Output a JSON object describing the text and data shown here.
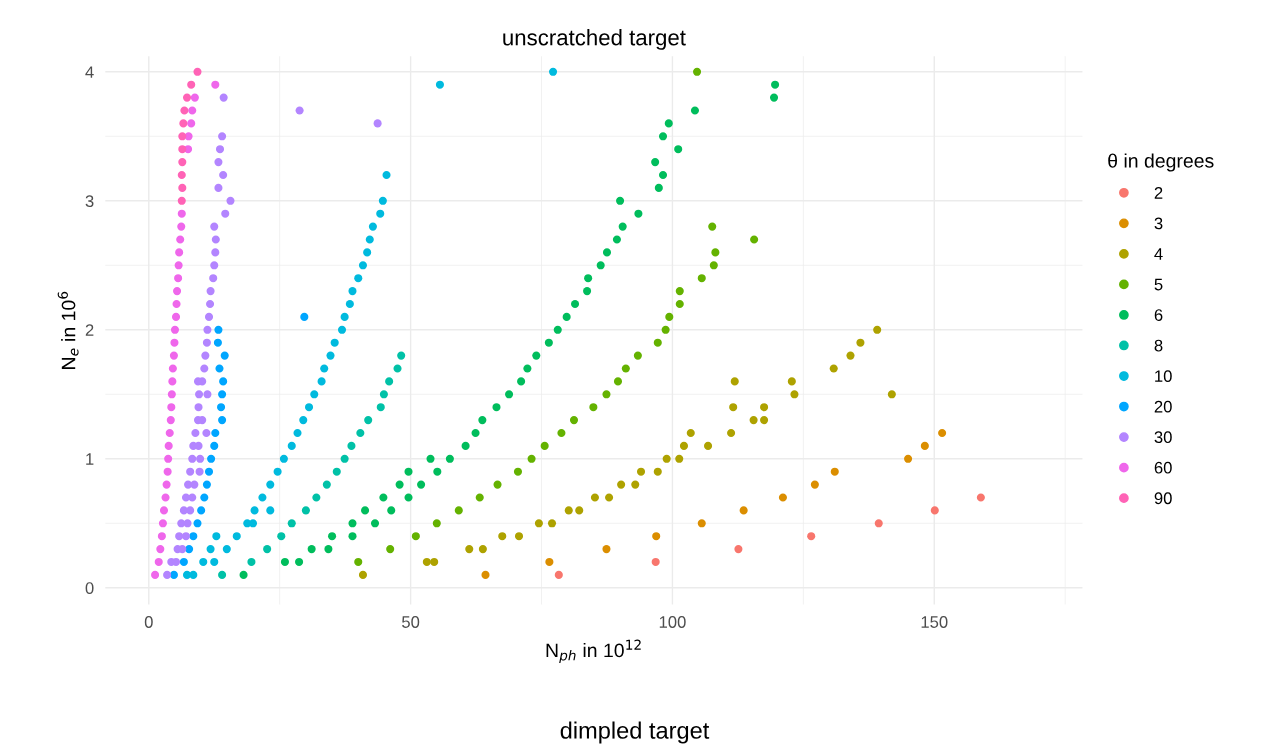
{
  "chart_data": {
    "type": "scatter",
    "title": "unscratched target",
    "xlabel": "N$_{ph}$ in 10$^{12}$",
    "ylabel": "N$_{e}$ in 10$^{6}$",
    "legend_title": "θ in degrees",
    "annotations": [
      "dimpled target"
    ],
    "xlim": [
      -8.3,
      178.3
    ],
    "ylim": [
      -0.13,
      4.12
    ],
    "xticks": [
      0,
      {
        "value": 25,
        "label": null
      },
      50,
      {
        "value": 75,
        "label": null
      },
      100,
      {
        "value": 125,
        "label": null
      },
      150,
      {
        "value": 175,
        "label": null
      }
    ],
    "yticks": [
      0,
      {
        "value": 0.5,
        "label": null
      },
      1,
      {
        "value": 1.5,
        "label": null
      },
      2,
      {
        "value": 2.5,
        "label": null
      },
      3,
      {
        "value": 3.5,
        "label": null
      },
      4
    ],
    "grid": true,
    "legend": "right",
    "marker": "circle",
    "series": [
      {
        "name": "2",
        "color": "#F8766D",
        "x": [
          78.3,
          96.8,
          112.6,
          126.5,
          139.4,
          150.1,
          158.9
        ],
        "values": [
          0.1,
          0.2,
          0.3,
          0.4,
          0.5,
          0.6,
          0.7
        ]
      },
      {
        "name": "3",
        "color": "#DB8E00",
        "x": [
          64.3,
          76.5,
          87.4,
          96.9,
          105.6,
          113.6,
          121.1,
          127.2,
          131.0,
          145.0,
          148.2,
          151.5
        ],
        "values": [
          0.1,
          0.2,
          0.3,
          0.4,
          0.5,
          0.6,
          0.7,
          0.8,
          0.9,
          1.0,
          1.1,
          1.2
        ]
      },
      {
        "name": "4",
        "color": "#AEA200",
        "x": [
          40.9,
          53.1,
          54.5,
          61.2,
          63.8,
          67.5,
          70.7,
          74.5,
          77.0,
          80.2,
          82.2,
          85.2,
          87.9,
          90.2,
          92.9,
          94.0,
          97.2,
          98.9,
          101.3,
          102.2,
          106.8,
          103.5,
          111.2,
          111.6,
          111.9,
          115.5,
          117.5,
          117.5,
          122.8,
          123.3,
          130.8,
          134.0,
          135.9,
          139.1,
          141.9
        ],
        "values": [
          0.1,
          0.2,
          0.2,
          0.3,
          0.3,
          0.4,
          0.4,
          0.5,
          0.5,
          0.6,
          0.6,
          0.7,
          0.7,
          0.8,
          0.8,
          0.9,
          0.9,
          1.0,
          1.0,
          1.1,
          1.1,
          1.2,
          1.2,
          1.4,
          1.6,
          1.3,
          1.3,
          1.4,
          1.6,
          1.5,
          1.7,
          1.8,
          1.9,
          2.0,
          1.5
        ]
      },
      {
        "name": "5",
        "color": "#64B200",
        "x": [
          40.0,
          46.1,
          51.0,
          55.0,
          59.2,
          63.2,
          66.6,
          70.5,
          73.1,
          75.6,
          78.8,
          81.2,
          84.9,
          87.4,
          89.6,
          91.1,
          93.4,
          97.2,
          98.7,
          99.4,
          101.4,
          101.4,
          105.6,
          107.9,
          108.2,
          115.6,
          107.6,
          104.7
        ],
        "values": [
          0.2,
          0.3,
          0.4,
          0.5,
          0.6,
          0.7,
          0.8,
          0.9,
          1.0,
          1.1,
          1.2,
          1.3,
          1.4,
          1.5,
          1.6,
          1.7,
          1.8,
          1.9,
          2.0,
          2.1,
          2.2,
          2.3,
          2.4,
          2.5,
          2.6,
          2.7,
          2.8,
          4.0
        ]
      },
      {
        "name": "6",
        "color": "#00BD5C",
        "x": [
          18.1,
          26.0,
          28.7,
          31.1,
          34.3,
          35.0,
          38.9,
          38.9,
          43.2,
          41.3,
          46.3,
          44.8,
          49.6,
          47.9,
          52.0,
          49.6,
          55.1,
          53.8,
          57.5,
          60.5,
          62.4,
          63.7,
          66.4,
          68.8,
          71.1,
          72.3,
          74.0,
          76.4,
          78.1,
          79.8,
          81.4,
          83.7,
          83.9,
          86.3,
          87.5,
          89.4,
          90.5,
          93.5,
          90.0,
          97.4,
          98.2,
          96.7,
          101.1,
          98.2,
          99.3,
          104.3,
          119.4,
          119.6
        ],
        "values": [
          0.1,
          0.2,
          0.2,
          0.3,
          0.3,
          0.4,
          0.4,
          0.5,
          0.5,
          0.6,
          0.6,
          0.7,
          0.7,
          0.8,
          0.8,
          0.9,
          0.9,
          1.0,
          1.0,
          1.1,
          1.2,
          1.3,
          1.4,
          1.5,
          1.6,
          1.7,
          1.8,
          1.9,
          2.0,
          2.1,
          2.2,
          2.3,
          2.4,
          2.5,
          2.6,
          2.7,
          2.8,
          2.9,
          3.0,
          3.1,
          3.2,
          3.3,
          3.4,
          3.5,
          3.6,
          3.7,
          3.8,
          3.9
        ]
      },
      {
        "name": "8",
        "color": "#00C1A7",
        "x": [
          14.0,
          19.6,
          22.6,
          25.3,
          27.3,
          30.0,
          32.0,
          34.0,
          35.9,
          37.4,
          38.7,
          40.4,
          41.9,
          44.3,
          44.9,
          45.9,
          47.5,
          48.2
        ],
        "values": [
          0.1,
          0.2,
          0.3,
          0.4,
          0.5,
          0.6,
          0.7,
          0.8,
          0.9,
          1.0,
          1.1,
          1.2,
          1.3,
          1.4,
          1.5,
          1.6,
          1.7,
          1.8
        ]
      },
      {
        "name": "10",
        "color": "#00BADE",
        "x": [
          7.3,
          8.5,
          10.4,
          12.5,
          11.8,
          14.9,
          12.9,
          16.8,
          18.8,
          19.9,
          20.2,
          23.2,
          21.7,
          23.2,
          24.6,
          25.8,
          27.3,
          28.4,
          29.5,
          30.6,
          31.6,
          33.0,
          33.5,
          34.7,
          35.5,
          36.9,
          37.4,
          38.4,
          38.9,
          40.0,
          40.9,
          41.7,
          42.2,
          42.8,
          44.2,
          44.7,
          45.4,
          55.6,
          77.2
        ],
        "values": [
          0.1,
          0.1,
          0.2,
          0.2,
          0.3,
          0.3,
          0.4,
          0.4,
          0.5,
          0.5,
          0.6,
          0.6,
          0.7,
          0.8,
          0.9,
          1.0,
          1.1,
          1.2,
          1.3,
          1.4,
          1.5,
          1.6,
          1.7,
          1.8,
          1.9,
          2.0,
          2.1,
          2.2,
          2.3,
          2.4,
          2.5,
          2.6,
          2.7,
          2.8,
          2.9,
          3.0,
          3.2,
          3.9,
          4.0
        ]
      },
      {
        "name": "20",
        "color": "#00A6FF",
        "x": [
          4.8,
          6.7,
          7.7,
          8.5,
          9.3,
          10.0,
          10.6,
          11.1,
          11.5,
          11.9,
          12.5,
          12.7,
          14.0,
          13.8,
          14.0,
          14.2,
          13.5,
          14.5,
          13.2,
          13.3,
          29.7
        ],
        "values": [
          0.1,
          0.2,
          0.3,
          0.4,
          0.5,
          0.6,
          0.7,
          0.8,
          0.9,
          1.0,
          1.1,
          1.2,
          1.3,
          1.4,
          1.5,
          1.6,
          1.7,
          1.8,
          1.9,
          2.0,
          2.1
        ]
      },
      {
        "name": "30",
        "color": "#B385FF",
        "x": [
          3.5,
          4.3,
          5.2,
          5.5,
          6.4,
          5.8,
          7.1,
          6.2,
          7.4,
          6.7,
          7.9,
          7.1,
          8.3,
          7.5,
          8.7,
          7.9,
          9.7,
          8.3,
          9.8,
          8.5,
          9.5,
          8.9,
          11.0,
          9.4,
          10.2,
          9.5,
          9.6,
          11.2,
          9.4,
          10.2,
          10.6,
          10.8,
          11.1,
          11.2,
          11.5,
          11.7,
          11.8,
          12.3,
          12.5,
          12.7,
          12.8,
          12.5,
          14.6,
          15.6,
          13.3,
          14.2,
          13.3,
          13.6,
          14.0,
          14.3,
          28.8,
          43.7
        ],
        "values": [
          0.1,
          0.2,
          0.2,
          0.3,
          0.3,
          0.4,
          0.4,
          0.5,
          0.5,
          0.6,
          0.6,
          0.7,
          0.7,
          0.8,
          0.8,
          0.9,
          0.9,
          1.0,
          1.0,
          1.1,
          1.1,
          1.2,
          1.2,
          1.3,
          1.3,
          1.4,
          1.5,
          1.5,
          1.6,
          1.6,
          1.7,
          1.8,
          1.9,
          2.0,
          2.1,
          2.2,
          2.3,
          2.4,
          2.5,
          2.6,
          2.7,
          2.8,
          2.9,
          3.0,
          3.1,
          3.2,
          3.3,
          3.4,
          3.5,
          3.8,
          3.7,
          3.6
        ]
      },
      {
        "name": "60",
        "color": "#EF67EB",
        "x": [
          1.2,
          1.9,
          2.2,
          2.5,
          2.7,
          2.9,
          3.2,
          3.4,
          3.6,
          3.7,
          3.8,
          4.0,
          4.2,
          4.3,
          4.4,
          4.5,
          4.6,
          4.8,
          4.9,
          5.0,
          5.2,
          5.3,
          5.4,
          5.6,
          5.7,
          5.8,
          6.0,
          6.2,
          6.3,
          7.5,
          7.6,
          8.1,
          8.3,
          8.8,
          12.7
        ],
        "values": [
          0.1,
          0.2,
          0.3,
          0.4,
          0.5,
          0.6,
          0.7,
          0.8,
          0.9,
          1.0,
          1.1,
          1.2,
          1.3,
          1.4,
          1.5,
          1.6,
          1.7,
          1.8,
          1.9,
          2.0,
          2.1,
          2.2,
          2.3,
          2.4,
          2.5,
          2.6,
          2.7,
          2.8,
          2.9,
          3.4,
          3.5,
          3.6,
          3.7,
          3.8,
          3.9
        ]
      },
      {
        "name": "90",
        "color": "#FF63B6",
        "x": [
          6.3,
          6.4,
          6.3,
          6.4,
          6.4,
          6.4,
          6.6,
          6.8,
          7.3,
          8.1,
          9.3
        ],
        "values": [
          3.0,
          3.1,
          3.2,
          3.3,
          3.4,
          3.5,
          3.6,
          3.7,
          3.8,
          3.9,
          4.0
        ]
      }
    ]
  }
}
